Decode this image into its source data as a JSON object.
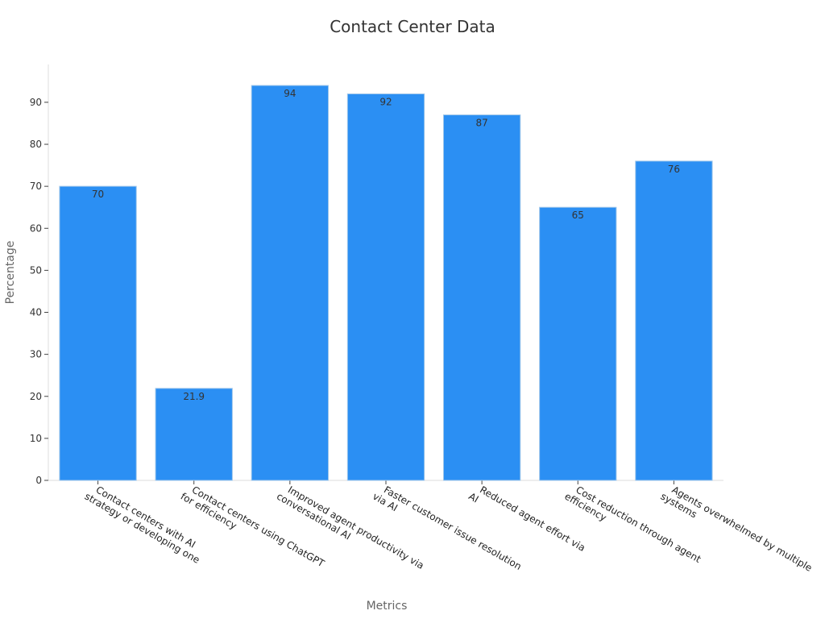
{
  "chart_data": {
    "type": "bar",
    "title": "Contact Center Data",
    "xlabel": "Metrics",
    "ylabel": "Percentage",
    "categories": [
      [
        "Contact centers with AI",
        "strategy or developing one"
      ],
      [
        "Contact centers using ChatGPT",
        "for efficiency"
      ],
      [
        "Improved agent productivity via",
        "conversational AI"
      ],
      [
        "Faster customer issue resolution",
        "via AI"
      ],
      [
        "Reduced agent effort via",
        "AI"
      ],
      [
        "Cost reduction through agent",
        "efficiency"
      ],
      [
        "Agents overwhelmed by multiple",
        "systems"
      ]
    ],
    "values": [
      70,
      21.9,
      94,
      92,
      87,
      65,
      76
    ],
    "data_labels": [
      "70",
      "21.9",
      "94",
      "92",
      "87",
      "65",
      "76"
    ],
    "ylim": [
      0,
      99
    ],
    "yticks": [
      0,
      10,
      20,
      30,
      40,
      50,
      60,
      70,
      80,
      90
    ],
    "bar_color": "#2b8ff3",
    "bar_edge_color": "#9fc6ea",
    "grid": false,
    "legend": "none"
  }
}
